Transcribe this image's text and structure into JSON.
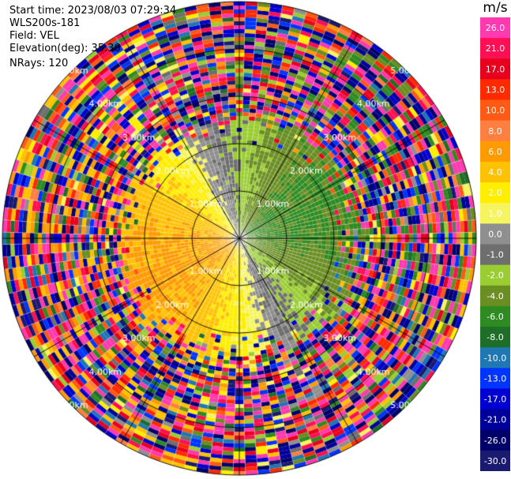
{
  "header": {
    "start_time": "Start time: 2023/08/03 07:29:34",
    "instrument": "WLS200s-181",
    "field": "Field: VEL",
    "elevation": "Elevation(deg): 35.30",
    "nrays": "NRays: 120"
  },
  "colorbar": {
    "unit": "m/s",
    "ticks": [
      "26.0",
      "21.0",
      "17.0",
      "13.0",
      "10.0",
      "8.0",
      "6.0",
      "4.0",
      "2.0",
      "1.0",
      "0.0",
      "-1.0",
      "-2.0",
      "-4.0",
      "-6.0",
      "-8.0",
      "-10.0",
      "-13.0",
      "-17.0",
      "-21.0",
      "-26.0",
      "-30.0"
    ],
    "colors": [
      "#ff3ab0",
      "#ff0f53",
      "#e8001f",
      "#ff2a00",
      "#ff5a14",
      "#ff7f40",
      "#ff9a00",
      "#ffc200",
      "#ffee00",
      "#f6f560",
      "#8f8f8f",
      "#6e6e6e",
      "#9acd32",
      "#6b8e23",
      "#2e8b22",
      "#1e6e28",
      "#1f77b4",
      "#0035ff",
      "#0000d0",
      "#00009a",
      "#00006a",
      "#1a1a70"
    ]
  },
  "chart_data": {
    "type": "heatmap",
    "projection": "polar PPI",
    "field": "VEL",
    "n_rays": 120,
    "range_ring_labels_km": [
      "1.00km",
      "2.00km",
      "3.00km",
      "4.00km",
      "5.00km"
    ],
    "range_rings_km": [
      1,
      2,
      3,
      4,
      5
    ],
    "max_range_km": 5.0,
    "spokes_deg": [
      0,
      30,
      60,
      90,
      120,
      150,
      180,
      210,
      240,
      270,
      300,
      330
    ],
    "pattern": {
      "receding_sector_center_deg": 250,
      "approaching_sector_center_deg": 70,
      "near_field_speed_ms": [
        2.0,
        6.0
      ],
      "far_field": "noisy"
    }
  }
}
